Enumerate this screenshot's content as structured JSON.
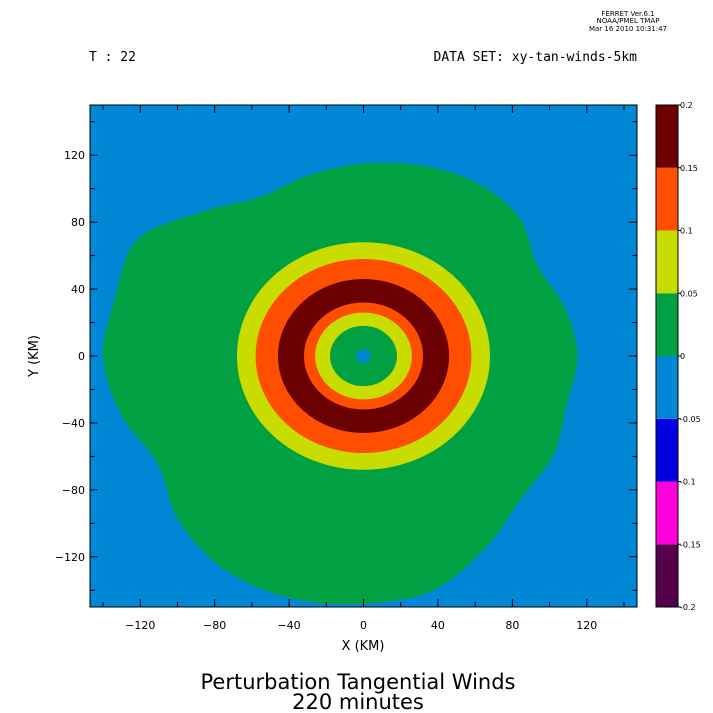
{
  "header": {
    "software": [
      "FERRET  Ver.6.1",
      "NOAA/PMEL TMAP",
      "Mar 16 2010 10:31:47"
    ],
    "time_label": "T : 22",
    "dataset_label": "DATA SET: xy-tan-winds-5km"
  },
  "footer": {
    "title_line1": "Perturbation Tangential Winds",
    "title_line2": "220 minutes"
  },
  "chart_data": {
    "type": "heatmap",
    "xlabel": "X (KM)",
    "ylabel": "Y (KM)",
    "xlim": [
      -147,
      147
    ],
    "ylim": [
      -150,
      150
    ],
    "xticks": [
      -120,
      -80,
      -40,
      0,
      40,
      80,
      120
    ],
    "yticks": [
      -120,
      -80,
      -40,
      0,
      40,
      80,
      120
    ],
    "colorbar": {
      "levels": [
        -0.2,
        -0.15,
        -0.1,
        -0.05,
        0,
        0.05,
        0.1,
        0.15,
        0.2
      ],
      "level_labels": [
        "-0.2",
        "-0.15",
        "-0.1",
        "-0.05",
        "0",
        "0.05",
        "0.1",
        "0.15",
        "0.2"
      ],
      "colors": [
        "#55004a",
        "#ff00dd",
        "#0000e0",
        "#0088d6",
        "#00a043",
        "#c8dc00",
        "#ff4e00",
        "#6a0000"
      ]
    },
    "field": {
      "background_value_range": [
        -0.05,
        0
      ],
      "irregular_region": {
        "value_range": [
          0,
          0.05
        ],
        "boundary_radius_km_by_angle_deg": [
          [
            0,
            115
          ],
          [
            15,
            112
          ],
          [
            30,
            108
          ],
          [
            45,
            118
          ],
          [
            60,
            120
          ],
          [
            75,
            118
          ],
          [
            90,
            115
          ],
          [
            105,
            112
          ],
          [
            120,
            110
          ],
          [
            135,
            122
          ],
          [
            150,
            140
          ],
          [
            165,
            138
          ],
          [
            180,
            140
          ],
          [
            195,
            135
          ],
          [
            210,
            128
          ],
          [
            225,
            140
          ],
          [
            240,
            148
          ],
          [
            255,
            150
          ],
          [
            270,
            148
          ],
          [
            285,
            145
          ],
          [
            300,
            132
          ],
          [
            315,
            120
          ],
          [
            330,
            118
          ],
          [
            345,
            113
          ]
        ]
      },
      "rings": [
        {
          "inner_radius_km": 44,
          "outer_radius_km": 68,
          "value_range": [
            0.05,
            0.1
          ]
        },
        {
          "inner_radius_km": 34,
          "outer_radius_km": 58,
          "value_range": [
            0.1,
            0.15
          ]
        },
        {
          "inner_radius_km": 32,
          "outer_radius_km": 46,
          "value_range": [
            0.15,
            0.2
          ]
        },
        {
          "inner_radius_km": 26,
          "outer_radius_km": 32,
          "value_range": [
            0.1,
            0.15
          ]
        },
        {
          "inner_radius_km": 18,
          "outer_radius_km": 26,
          "value_range": [
            0.05,
            0.1
          ]
        }
      ],
      "inner_core": {
        "radius_km": 18,
        "value_range": [
          0,
          0.05
        ]
      },
      "eye": {
        "radius_km": 2,
        "value_range": [
          -0.05,
          0
        ]
      }
    }
  }
}
